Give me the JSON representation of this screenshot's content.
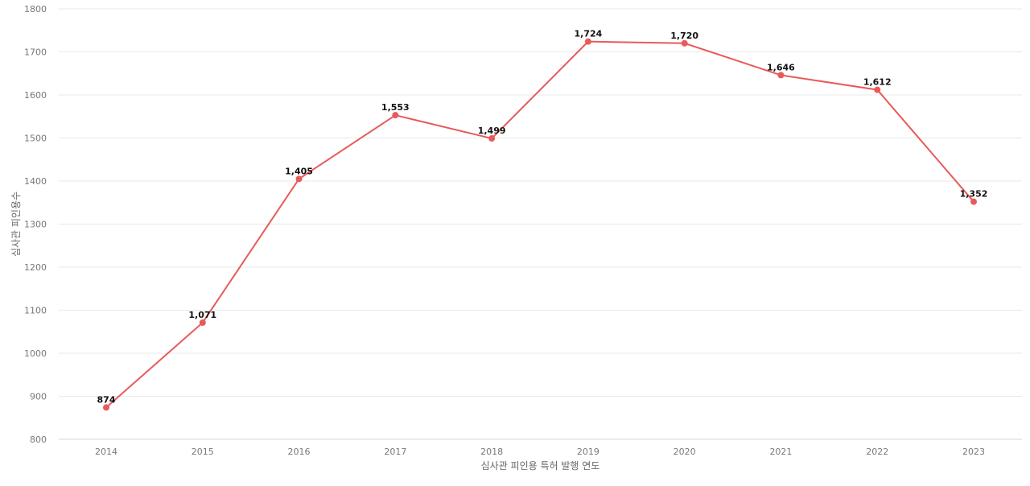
{
  "chart_data": {
    "type": "line",
    "title": "",
    "xlabel": "심사관 피인용 특허 발행 연도",
    "ylabel": "심사관 피인용수",
    "x": [
      "2014",
      "2015",
      "2016",
      "2017",
      "2018",
      "2019",
      "2020",
      "2021",
      "2022",
      "2023"
    ],
    "series": [
      {
        "values": [
          874,
          1071,
          1405,
          1553,
          1499,
          1724,
          1720,
          1646,
          1612,
          1352
        ],
        "labels": [
          "874",
          "1,071",
          "1,405",
          "1,553",
          "1,499",
          "1,724",
          "1,720",
          "1,646",
          "1,612",
          "1,352"
        ],
        "color": "#e85a5a"
      }
    ],
    "ylim": [
      800,
      1800
    ],
    "yticks": [
      800,
      900,
      1000,
      1100,
      1200,
      1300,
      1400,
      1500,
      1600,
      1700,
      1800
    ],
    "grid": true,
    "legend": "none"
  }
}
